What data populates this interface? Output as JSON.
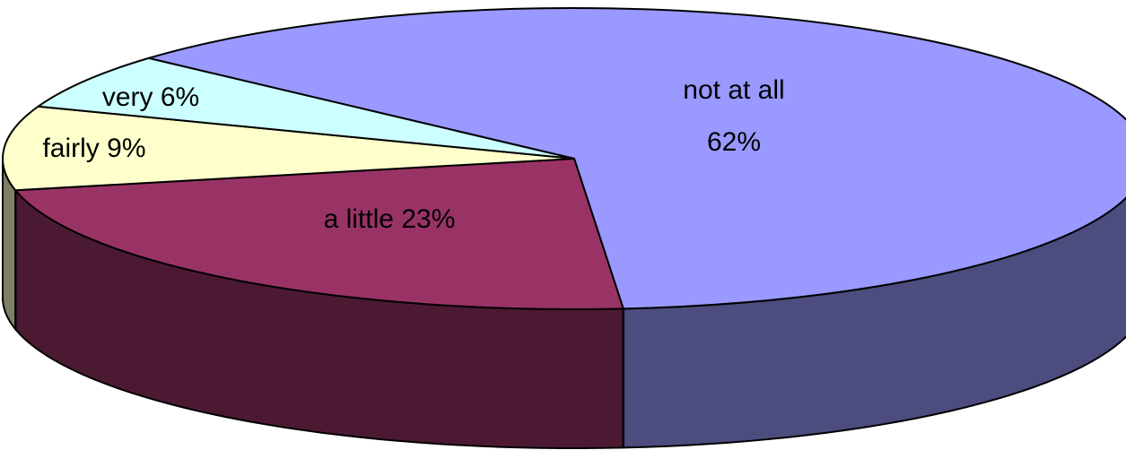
{
  "chart_data": {
    "type": "pie",
    "style": "3d",
    "title": "",
    "slices": [
      {
        "label": "not at all",
        "value": 62,
        "label_text": "not at all",
        "value_text": "62%",
        "color": "#9999FF",
        "side_color": "#4C4C7F"
      },
      {
        "label": "a little",
        "value": 23,
        "label_text": "a little  23%",
        "value_text": "",
        "color": "#993366",
        "side_color": "#4C1933"
      },
      {
        "label": "fairly",
        "value": 9,
        "label_text": "fairly  9%",
        "value_text": "",
        "color": "#FFFFCC",
        "side_color": "#7F7F66"
      },
      {
        "label": "very",
        "value": 6,
        "label_text": "very  6%",
        "value_text": "",
        "color": "#CCFFFF",
        "side_color": "#667F7F"
      }
    ]
  }
}
